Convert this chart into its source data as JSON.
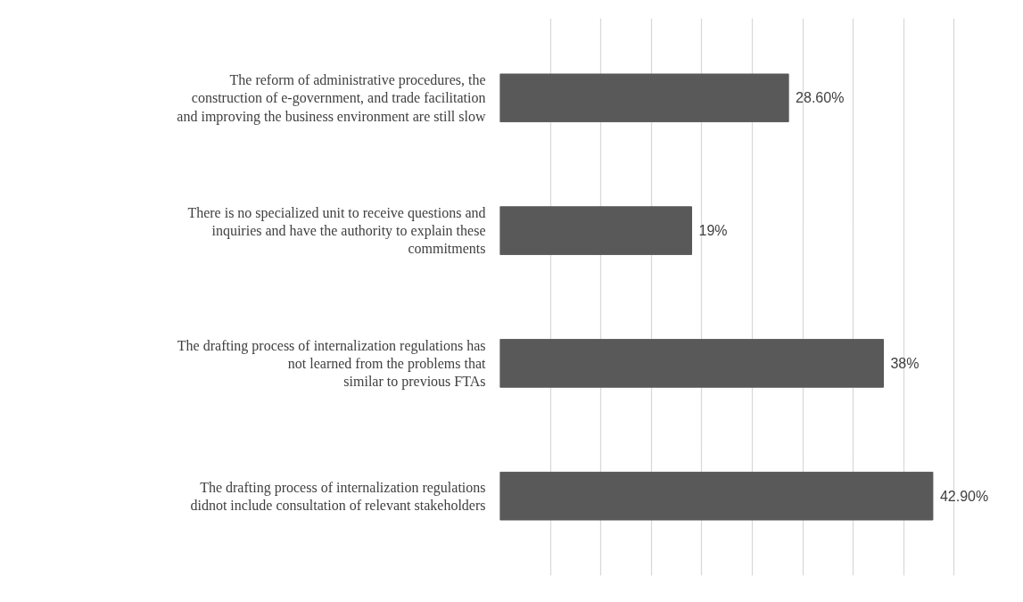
{
  "chart_data": {
    "type": "bar",
    "orientation": "horizontal",
    "categories": [
      "The reform of administrative procedures, the\nconstruction of e-government, and trade facilitation\nand improving the business environment are still slow",
      "There is no specialized unit to receive questions and\ninquiries and have the authority to explain these\ncommitments",
      "The drafting process of internalization regulations has\nnot learned from the problems that\nsimilar to previous FTAs",
      "The drafting process of internalization regulations\ndidnot include consultation of relevant stakeholders"
    ],
    "values": [
      28.6,
      19,
      38,
      42.9
    ],
    "value_labels": [
      "28.60%",
      "19%",
      "38%",
      "42.90%"
    ],
    "color": "#595959",
    "tick_labels": "y",
    "grid": "x"
  }
}
